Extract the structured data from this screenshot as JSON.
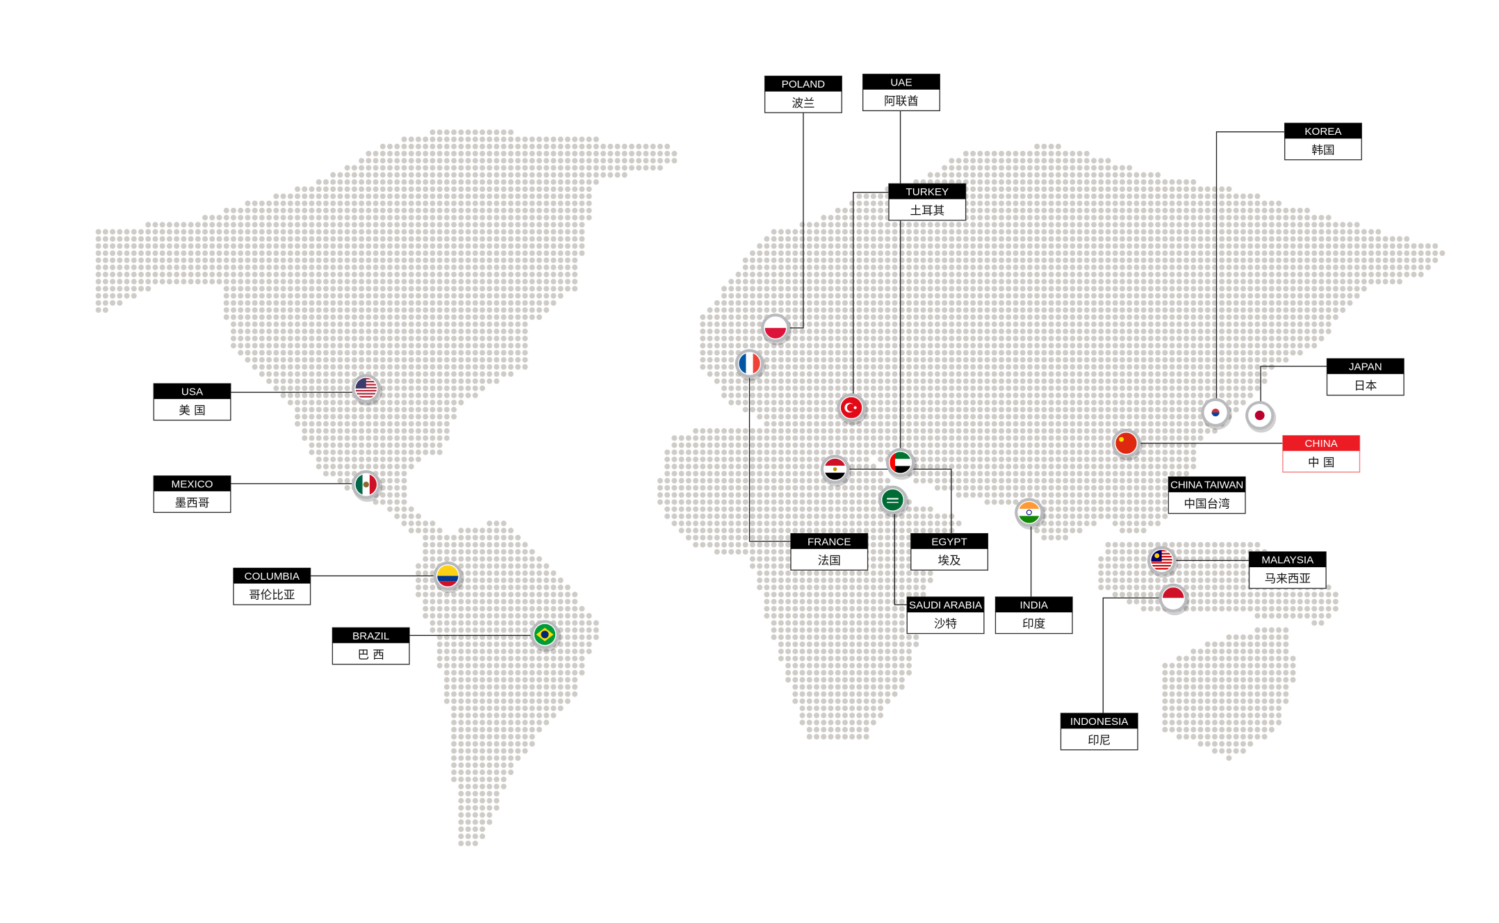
{
  "colors": {
    "dot": "#cfccc8",
    "label_header": "#000000",
    "highlight": "#ed1c24",
    "connector": "#222222"
  },
  "locations": [
    {
      "id": "usa",
      "en": "USA",
      "zh": "美 国",
      "flag": "usa-flag-icon"
    },
    {
      "id": "mexico",
      "en": "MEXICO",
      "zh": "墨西哥",
      "flag": "mexico-flag-icon"
    },
    {
      "id": "columbia",
      "en": "COLUMBIA",
      "zh": "哥伦比亚",
      "flag": "colombia-flag-icon"
    },
    {
      "id": "brazil",
      "en": "BRAZIL",
      "zh": "巴 西",
      "flag": "brazil-flag-icon"
    },
    {
      "id": "poland",
      "en": "POLAND",
      "zh": "波兰",
      "flag": "poland-flag-icon"
    },
    {
      "id": "uae",
      "en": "UAE",
      "zh": "阿联酋",
      "flag": "uae-flag-icon"
    },
    {
      "id": "turkey",
      "en": "TURKEY",
      "zh": "土耳其",
      "flag": "turkey-flag-icon"
    },
    {
      "id": "france",
      "en": "FRANCE",
      "zh": "法国",
      "flag": "france-flag-icon"
    },
    {
      "id": "egypt",
      "en": "EGYPT",
      "zh": "埃及",
      "flag": "egypt-flag-icon"
    },
    {
      "id": "saudi",
      "en": "SAUDI ARABIA",
      "zh": "沙特",
      "flag": "saudi-flag-icon"
    },
    {
      "id": "india",
      "en": "INDIA",
      "zh": "印度",
      "flag": "india-flag-icon"
    },
    {
      "id": "korea",
      "en": "KOREA",
      "zh": "韩国",
      "flag": "korea-flag-icon"
    },
    {
      "id": "japan",
      "en": "JAPAN",
      "zh": "日本",
      "flag": "japan-flag-icon"
    },
    {
      "id": "china",
      "en": "CHINA",
      "zh": "中 国",
      "flag": "china-flag-icon",
      "highlighted": true
    },
    {
      "id": "taiwan",
      "en": "CHINA TAIWAN",
      "zh": "中国台湾"
    },
    {
      "id": "malaysia",
      "en": "MALAYSIA",
      "zh": "马来西亚",
      "flag": "malaysia-flag-icon"
    },
    {
      "id": "indonesia",
      "en": "INDONESIA",
      "zh": "印尼",
      "flag": "indonesia-flag-icon"
    }
  ]
}
